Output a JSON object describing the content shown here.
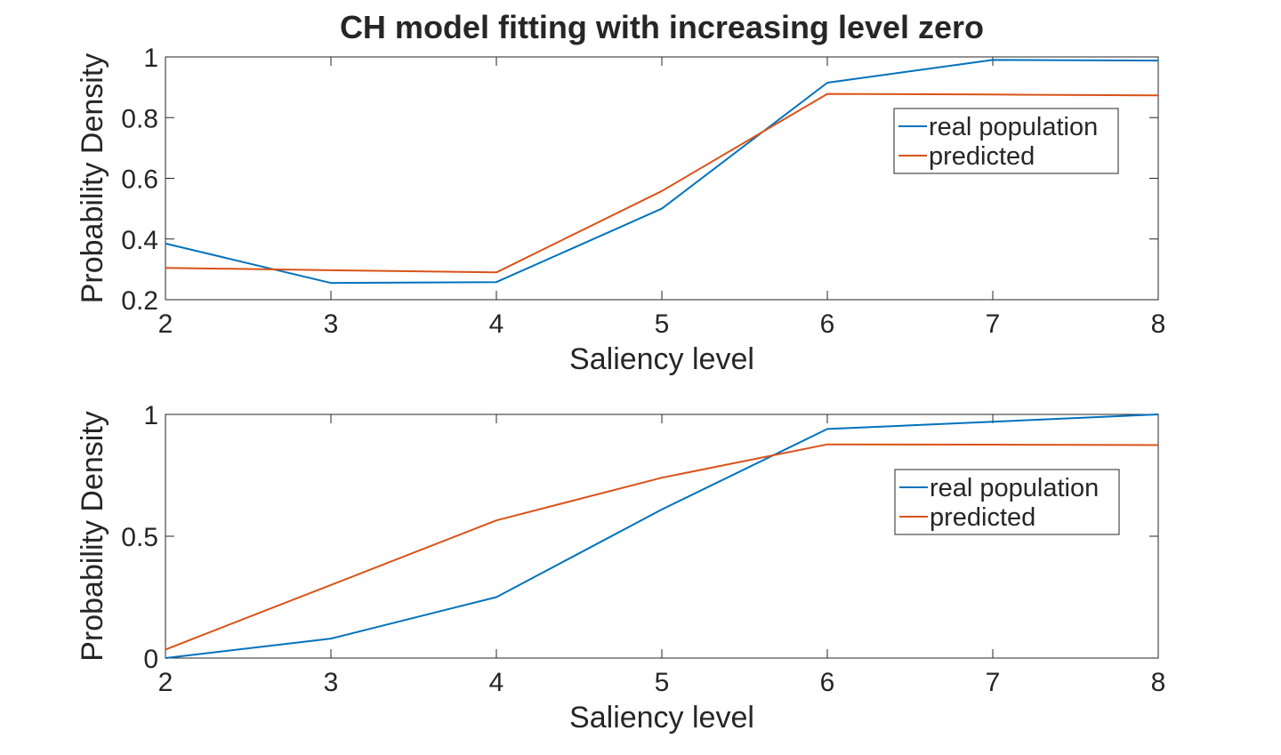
{
  "figure": {
    "title": "CH model fitting with increasing level zero"
  },
  "colors": {
    "real": "#0072BD",
    "predicted": "#D95319",
    "axis": "#262626"
  },
  "chart_data": [
    {
      "type": "line",
      "title": "CH model fitting with increasing level zero",
      "xlabel": "Saliency level",
      "ylabel": "Probability Density",
      "xlim": [
        2,
        8
      ],
      "ylim": [
        0.2,
        1
      ],
      "xticks": [
        2,
        3,
        4,
        5,
        6,
        7,
        8
      ],
      "xtick_labels": [
        "2",
        "3",
        "4",
        "5",
        "6",
        "7",
        "8"
      ],
      "yticks": [
        0.2,
        0.4,
        0.6,
        0.8,
        1
      ],
      "ytick_labels": [
        "0.2",
        "0.4",
        "0.6",
        "0.8",
        "1"
      ],
      "grid": false,
      "legend": {
        "placement": "top-right",
        "entries": [
          "real population",
          "predicted"
        ]
      },
      "x": [
        2,
        3,
        4,
        5,
        6,
        7,
        8
      ],
      "series": [
        {
          "name": "real population",
          "values": [
            0.385,
            0.255,
            0.258,
            0.5,
            0.915,
            0.99,
            0.988
          ]
        },
        {
          "name": "predicted",
          "values": [
            0.305,
            0.297,
            0.29,
            0.558,
            0.878,
            0.876,
            0.873
          ]
        }
      ]
    },
    {
      "type": "line",
      "title": "",
      "xlabel": "Saliency level",
      "ylabel": "Probability Density",
      "xlim": [
        2,
        8
      ],
      "ylim": [
        0,
        1
      ],
      "xticks": [
        2,
        3,
        4,
        5,
        6,
        7,
        8
      ],
      "xtick_labels": [
        "2",
        "3",
        "4",
        "5",
        "6",
        "7",
        "8"
      ],
      "yticks": [
        0,
        0.5,
        1
      ],
      "ytick_labels": [
        "0",
        "0.5",
        "1"
      ],
      "grid": false,
      "legend": {
        "placement": "top-right",
        "entries": [
          "real population",
          "predicted"
        ]
      },
      "x": [
        2,
        3,
        4,
        5,
        6,
        7,
        8
      ],
      "series": [
        {
          "name": "real population",
          "values": [
            0.0,
            0.08,
            0.25,
            0.61,
            0.94,
            0.97,
            1.0
          ]
        },
        {
          "name": "predicted",
          "values": [
            0.035,
            0.3,
            0.565,
            0.74,
            0.877,
            0.876,
            0.874
          ]
        }
      ]
    }
  ]
}
